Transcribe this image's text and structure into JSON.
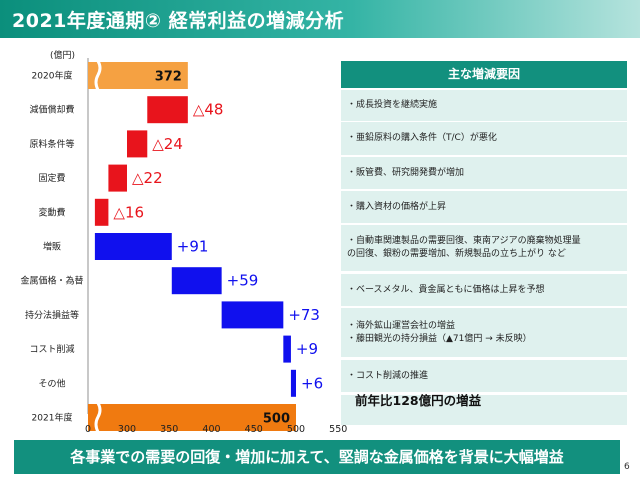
{
  "title": "2021年度通期② 経常利益の増減分析",
  "chart_data": {
    "type": "waterfall",
    "unit_label": "(億円)",
    "xlim": [
      0,
      550
    ],
    "x_ticks": [
      "0",
      "300",
      "350",
      "400",
      "450",
      "500",
      "550"
    ],
    "axis_break": true,
    "grid": false,
    "categories": [
      "2020年度",
      "減価償却費",
      "原料条件等",
      "固定費",
      "変動費",
      "増販",
      "金属価格・為替",
      "持分法損益等",
      "コスト削減",
      "その他",
      "2021年度"
    ],
    "bars": [
      {
        "category": "2020年度",
        "kind": "total",
        "start": 0,
        "end": 372,
        "label": "372",
        "color": "#f5a142"
      },
      {
        "category": "減価償却費",
        "kind": "decrease",
        "start": 372,
        "end": 324,
        "label": "△48",
        "color": "#e8141c"
      },
      {
        "category": "原料条件等",
        "kind": "decrease",
        "start": 324,
        "end": 300,
        "label": "△24",
        "color": "#e8141c"
      },
      {
        "category": "固定費",
        "kind": "decrease",
        "start": 300,
        "end": 278,
        "label": "△22",
        "color": "#e8141c"
      },
      {
        "category": "変動費",
        "kind": "decrease",
        "start": 278,
        "end": 262,
        "label": "△16",
        "color": "#e8141c"
      },
      {
        "category": "増販",
        "kind": "increase",
        "start": 262,
        "end": 353,
        "label": "+91",
        "color": "#1010ee"
      },
      {
        "category": "金属価格・為替",
        "kind": "increase",
        "start": 353,
        "end": 412,
        "label": "+59",
        "color": "#1010ee"
      },
      {
        "category": "持分法損益等",
        "kind": "increase",
        "start": 412,
        "end": 485,
        "label": "+73",
        "color": "#1010ee"
      },
      {
        "category": "コスト削減",
        "kind": "increase",
        "start": 485,
        "end": 494,
        "label": "+9",
        "color": "#1010ee"
      },
      {
        "category": "その他",
        "kind": "increase",
        "start": 494,
        "end": 500,
        "label": "+6",
        "color": "#1010ee"
      },
      {
        "category": "2021年度",
        "kind": "total",
        "start": 0,
        "end": 500,
        "label": "500",
        "color": "#f07a10"
      }
    ]
  },
  "factors_panel": {
    "header": "主な増減要因",
    "rows": [
      [
        "・成長投資を継続実施"
      ],
      [
        "・亜鉛原料の購入条件（T/C）が悪化"
      ],
      [
        "・販管費、研究開発費が増加"
      ],
      [
        "・購入資材の価格が上昇"
      ],
      [
        "・自動車関連製品の需要回復、東南アジアの廃棄物処理量",
        "の回復、銀粉の需要増加、新規製品の立ち上がり など"
      ],
      [
        "・ベースメタル、貴金属ともに価格は上昇を予想"
      ],
      [
        "・海外鉱山運営会社の増益",
        "・藤田観光の持分損益（▲71億円 → 未反映）"
      ],
      [
        "・コスト削減の推進"
      ],
      []
    ]
  },
  "summary": "前年比128億円の増益",
  "footer": "各事業での需要の回復・増加に加えて、堅調な金属価格を背景に大幅増益",
  "page_number": "6"
}
